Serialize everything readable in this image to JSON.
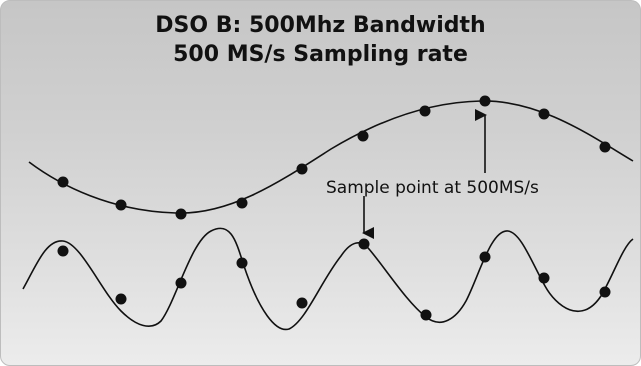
{
  "title": {
    "line1": "DSO B: 500Mhz Bandwidth",
    "line2": "500 MS/s Sampling rate"
  },
  "annotation": {
    "text": "Sample point at 500MS/s"
  },
  "colors": {
    "waveform": "#111111",
    "sample_point": "#111111",
    "background_top": "#c6c6c6",
    "background_bottom": "#ececec"
  }
}
